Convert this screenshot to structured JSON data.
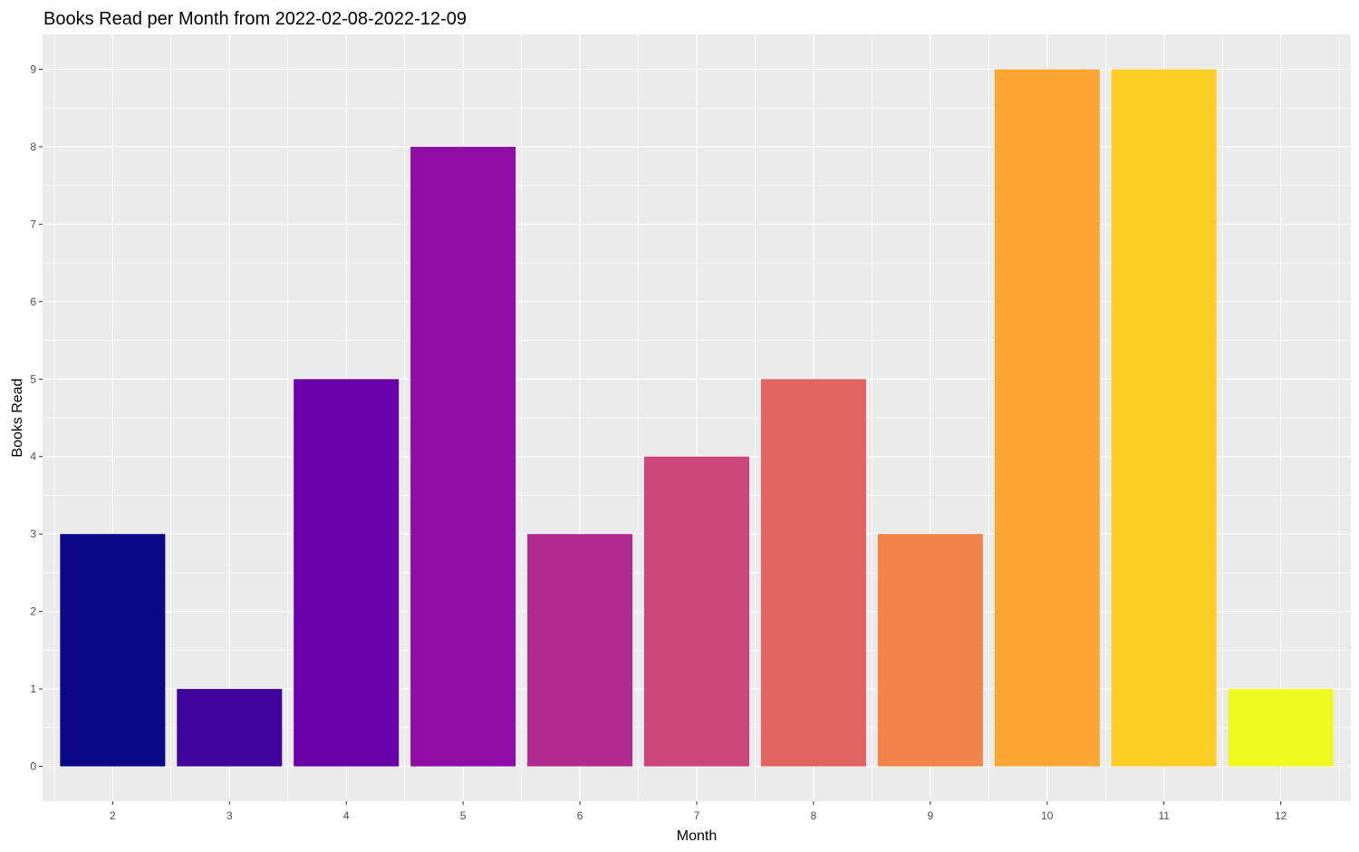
{
  "chart_data": {
    "type": "bar",
    "title": "Books Read per Month from 2022-02-08-2022-12-09",
    "xlabel": "Month",
    "ylabel": "Books Read",
    "categories": [
      "2",
      "3",
      "4",
      "5",
      "6",
      "7",
      "8",
      "9",
      "10",
      "11",
      "12"
    ],
    "values": [
      3,
      1,
      5,
      8,
      3,
      4,
      5,
      3,
      9,
      9,
      1
    ],
    "colors": [
      "#0D0887",
      "#41049D",
      "#6A00A8",
      "#8F0DA4",
      "#B12A90",
      "#CC4778",
      "#E16462",
      "#F2844B",
      "#FCA636",
      "#FCCE25",
      "#F0F921"
    ],
    "y_ticks": [
      0,
      1,
      2,
      3,
      4,
      5,
      6,
      7,
      8,
      9
    ],
    "ylim": [
      -0.45,
      9.45
    ],
    "grid": true,
    "legend": "none",
    "panel_background": "#EBEBEB",
    "gridline_color": "#FFFFFF"
  }
}
